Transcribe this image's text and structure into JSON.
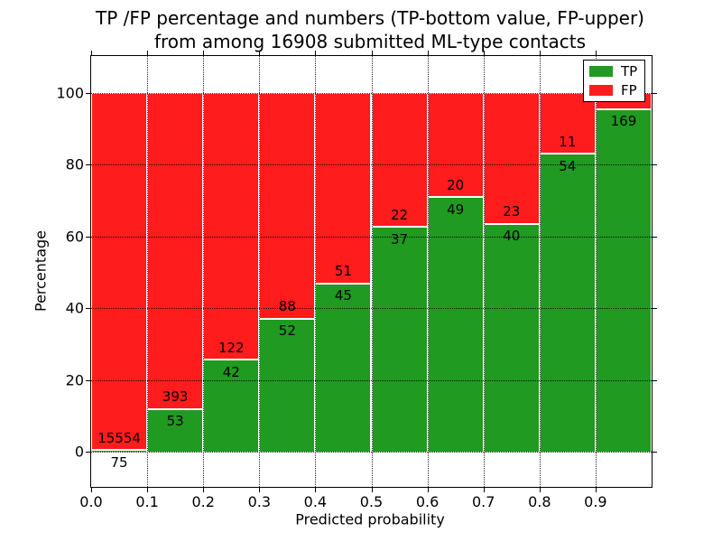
{
  "title": {
    "line1": "TP /FP percentage and numbers (TP-bottom value, FP-upper)",
    "line2": "from among 16908 submitted ML-type contacts"
  },
  "axes": {
    "xlabel": "Predicted probability",
    "ylabel": "Percentage",
    "x_tick_labels": [
      "0.0",
      "0.1",
      "0.2",
      "0.3",
      "0.4",
      "0.5",
      "0.6",
      "0.7",
      "0.8",
      "0.9"
    ],
    "y_tick_labels": [
      "0",
      "20",
      "40",
      "60",
      "80",
      "100"
    ],
    "y_tick_values": [
      0,
      20,
      40,
      60,
      80,
      100
    ]
  },
  "legend": {
    "items": [
      {
        "label": "TP",
        "color": "#209a20"
      },
      {
        "label": "FP",
        "color": "#ff1c1c"
      }
    ]
  },
  "colors": {
    "tp": "#209a20",
    "fp": "#ff1c1c",
    "grid": "#000000",
    "background": "#ffffff"
  },
  "chart_data": {
    "type": "bar",
    "stacked": true,
    "title": "TP /FP percentage and numbers (TP-bottom value, FP-upper) from among 16908 submitted ML-type contacts",
    "xlabel": "Predicted probability",
    "ylabel": "Percentage",
    "total_submitted_contacts": 16908,
    "bins": [
      "0.0-0.1",
      "0.1-0.2",
      "0.2-0.3",
      "0.3-0.4",
      "0.4-0.5",
      "0.5-0.6",
      "0.6-0.7",
      "0.7-0.8",
      "0.8-0.9",
      "0.9-1.0"
    ],
    "bin_starts": [
      0.0,
      0.1,
      0.2,
      0.3,
      0.4,
      0.5,
      0.6,
      0.7,
      0.8,
      0.9
    ],
    "bin_width": 0.1,
    "series": [
      {
        "name": "TP",
        "counts": [
          75,
          53,
          42,
          52,
          45,
          37,
          49,
          40,
          54,
          169
        ],
        "pct": [
          0.5,
          11.9,
          25.6,
          37.1,
          46.9,
          62.7,
          71.0,
          63.5,
          83.1,
          95.5
        ]
      },
      {
        "name": "FP",
        "counts": [
          15554,
          393,
          122,
          88,
          51,
          22,
          20,
          23,
          11,
          null
        ],
        "pct": [
          99.5,
          88.1,
          74.4,
          62.9,
          53.1,
          37.3,
          29.0,
          36.5,
          16.9,
          4.5
        ]
      }
    ],
    "xlim": [
      0.0,
      1.0
    ],
    "ylim": [
      -10,
      110
    ],
    "grid": "dotted",
    "legend_position": "upper right",
    "note_hidden_labels": "FP count label of last bin is covered by the legend"
  }
}
